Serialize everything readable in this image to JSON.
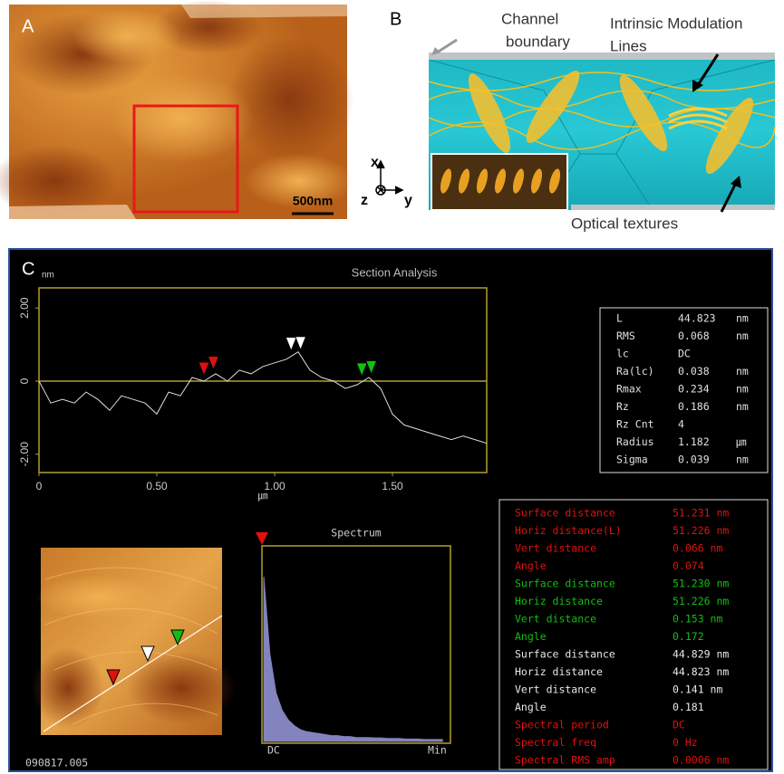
{
  "panel_a": {
    "label": "A",
    "scale_bar": "500nm"
  },
  "axes_indicator": {
    "x": "x",
    "y": "y",
    "z": "z"
  },
  "panel_b": {
    "label": "B",
    "channel_boundary": [
      "Channel",
      "boundary"
    ],
    "modulation_lines": [
      "Intrinsic Modulation",
      "Lines"
    ],
    "optical_textures": "Optical textures"
  },
  "panel_c": {
    "label": "C",
    "file_id": "090817.005"
  },
  "chart_data": [
    {
      "type": "line",
      "title": "Section Analysis",
      "y_unit": "nm",
      "x_unit": "㎛",
      "color": "#dddddd",
      "baseline": 0,
      "baseline_color": "#b0a030",
      "x": [
        0,
        0.05,
        0.1,
        0.15,
        0.2,
        0.25,
        0.3,
        0.35,
        0.4,
        0.45,
        0.5,
        0.55,
        0.6,
        0.65,
        0.7,
        0.75,
        0.8,
        0.85,
        0.9,
        0.95,
        1.0,
        1.05,
        1.1,
        1.15,
        1.2,
        1.25,
        1.3,
        1.35,
        1.4,
        1.45,
        1.5,
        1.55,
        1.6,
        1.65,
        1.7,
        1.75,
        1.8,
        1.85,
        1.9
      ],
      "values": [
        0.0,
        -0.6,
        -0.5,
        -0.6,
        -0.3,
        -0.5,
        -0.8,
        -0.4,
        -0.5,
        -0.6,
        -0.9,
        -0.3,
        -0.4,
        0.1,
        0.0,
        0.2,
        0.0,
        0.3,
        0.2,
        0.4,
        0.5,
        0.6,
        0.8,
        0.3,
        0.1,
        0.0,
        -0.2,
        -0.1,
        0.1,
        -0.2,
        -0.9,
        -1.2,
        -1.3,
        -1.4,
        -1.5,
        -1.6,
        -1.5,
        -1.6,
        -1.7
      ],
      "xlim": [
        0,
        1.9
      ],
      "ylim": [
        -2.5,
        2.55
      ],
      "xticks": [
        0,
        {
          "value": 0.5,
          "label": "0.50"
        },
        {
          "value": 1,
          "label": "1.00"
        },
        {
          "value": 1.5,
          "label": "1.50"
        }
      ],
      "yticks": [
        {
          "value": 2,
          "label": "2.00"
        },
        0,
        {
          "value": -2,
          "label": "-2.00"
        }
      ],
      "cursors": [
        {
          "color": "#e01010",
          "x": [
            0.7,
            0.74
          ]
        },
        {
          "color": "#ffffff",
          "x": [
            1.07,
            1.11
          ]
        },
        {
          "color": "#10c010",
          "x": [
            1.37,
            1.41
          ]
        }
      ]
    },
    {
      "type": "area",
      "title": "Spectrum",
      "x_labels": [
        "DC",
        "Min"
      ],
      "color": "#9a9ae0",
      "ylim": [
        0,
        1
      ],
      "values": [
        0.85,
        0.45,
        0.25,
        0.16,
        0.11,
        0.08,
        0.06,
        0.05,
        0.045,
        0.04,
        0.035,
        0.03,
        0.03,
        0.025,
        0.025,
        0.02,
        0.02,
        0.02,
        0.018,
        0.018,
        0.015,
        0.015,
        0.015,
        0.012,
        0.012,
        0.012,
        0.01,
        0.01,
        0.01,
        0.01
      ]
    }
  ],
  "stats_table": [
    [
      "L",
      "44.823",
      "nm"
    ],
    [
      "RMS",
      "0.068",
      "nm"
    ],
    [
      "lc",
      "DC",
      ""
    ],
    [
      "Ra(lc)",
      "0.038",
      "nm"
    ],
    [
      "Rmax",
      "0.234",
      "nm"
    ],
    [
      "Rz",
      "0.186",
      "nm"
    ],
    [
      "Rz Cnt",
      "4",
      ""
    ],
    [
      "Radius",
      "1.182",
      "㎛"
    ],
    [
      "Sigma",
      "0.039",
      "nm"
    ]
  ],
  "measurements": [
    {
      "color": "#e01010",
      "rows": [
        [
          "Surface distance",
          "51.231 nm"
        ],
        [
          "Horiz distance(L)",
          "51.226 nm"
        ],
        [
          "Vert distance",
          "0.066 nm"
        ],
        [
          "Angle",
          "0.074"
        ]
      ]
    },
    {
      "color": "#10c010",
      "rows": [
        [
          "Surface distance",
          "51.230 nm"
        ],
        [
          "Horiz distance",
          "51.226 nm"
        ],
        [
          "Vert distance",
          "0.153 nm"
        ],
        [
          "Angle",
          "0.172"
        ]
      ]
    },
    {
      "color": "#e8e8e8",
      "rows": [
        [
          "Surface distance",
          "44.829 nm"
        ],
        [
          "Horiz distance",
          "44.823 nm"
        ],
        [
          "Vert distance",
          "0.141 nm"
        ],
        [
          "Angle",
          "0.181"
        ]
      ]
    },
    {
      "color": "#e01010",
      "rows": [
        [
          "Spectral period",
          "DC"
        ],
        [
          "Spectral freq",
          "0 Hz"
        ],
        [
          "Spectral RMS amp",
          "0.0006 nm"
        ]
      ]
    }
  ]
}
